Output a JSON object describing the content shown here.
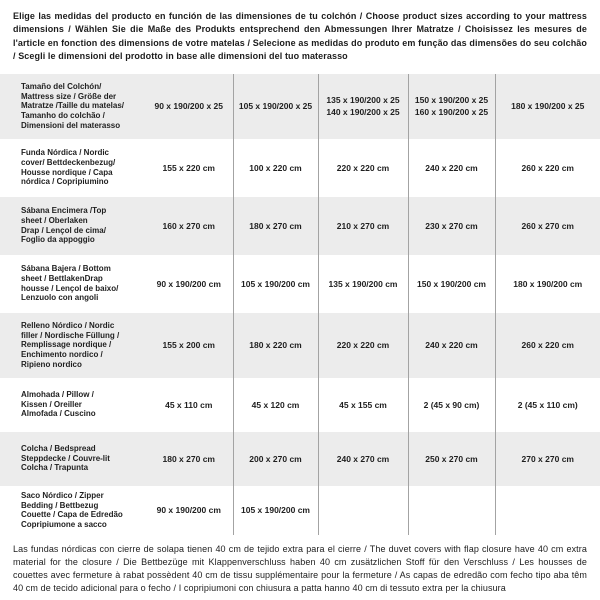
{
  "page": {
    "header_text": "Elige las medidas del producto en función de las dimensiones de tu colchón / Choose product sizes according to your mattress dimensions / Wählen Sie die Maße des Produkts entsprechend den Abmessungen Ihrer Matratze / Choisissez les mesures de l'article en fonction des dimensions de votre matelas / Selecione as medidas do produto em função das dimensões do seu colchão / Scegli le dimensioni del prodotto in base alle dimensioni del tuo materasso",
    "footer_text": "Las fundas nórdicas con cierre de solapa tienen 40 cm de tejido extra para el cierre  /  The duvet covers with flap closure have 40 cm extra material for the closure / Die Bettbezüge mit Klappenverschluss haben 40 cm zusätzlichen Stoff für den Verschluss / Les housses de couettes avec fermeture à rabat possèdent 40 cm de tissu supplémentaire pour la fermeture / As capas de edredão com fecho tipo aba têm 40 cm de tecido adicional para o fecho / I copripiumoni con chiusura a patta hanno 40 cm di tessuto extra per la chiusura"
  },
  "colors": {
    "row_stripe": "#ececec",
    "row_plain": "#ffffff",
    "divider": "#a3a3a3",
    "text": "#1d1d1d"
  },
  "table": {
    "rows": [
      {
        "label": "Tamaño del Colchón/\nMattress size / Größe der\nMatratze /Taille du matelas/\nTamanho do colchão /\nDimensioni del materasso",
        "values": [
          "90 x 190/200 x 25",
          "105 x 190/200 x 25",
          "135 x 190/200 x 25\n140 x 190/200 x 25",
          "150 x 190/200 x 25\n160 x 190/200 x 25",
          "180 x 190/200 x 25"
        ]
      },
      {
        "label": "Funda Nórdica /  Nordic\ncover/ Bettdeckenbezug/\nHousse nordique  / Capa\nnórdica / Copripiumino",
        "values": [
          "155 x 220 cm",
          "100 x 220 cm",
          "220 x 220 cm",
          "240 x 220 cm",
          "260 x 220 cm"
        ]
      },
      {
        "label": "Sábana Encimera /Top\nsheet / Oberlaken\nDrap / Lençol de cima/\nFoglio da appoggio",
        "values": [
          "160 x 270 cm",
          "180 x 270 cm",
          "210 x 270 cm",
          "230 x 270 cm",
          "260 x 270 cm"
        ]
      },
      {
        "label": "Sábana Bajera / Bottom\nsheet / BettlakenDrap\nhousse / Lençol de baixo/\nLenzuolo con angoli",
        "values": [
          "90 x 190/200 cm",
          "105 x 190/200 cm",
          "135 x 190/200 cm",
          "150 x 190/200 cm",
          "180 x 190/200 cm"
        ]
      },
      {
        "label": "Relleno Nórdico / Nordic\nfiller / Nordische Füllung /\nRemplissage nordique /\nEnchimento nordico /\nRipieno nordico",
        "values": [
          "155 x 200 cm",
          "180 x 220 cm",
          "220 x 220 cm",
          "240 x 220 cm",
          "260 x 220 cm"
        ]
      },
      {
        "label": "Almohada  / Pillow /\nKissen / Oreiller\nAlmofada / Cuscino",
        "values": [
          "45 x 110 cm",
          "45 x 120 cm",
          "45 x 155 cm",
          "2 (45 x 90 cm)",
          "2 (45 x 110 cm)"
        ]
      },
      {
        "label": "Colcha / Bedspread\nSteppdecke / Couvre-lit\nColcha / Trapunta",
        "values": [
          "180 x 270 cm",
          "200 x 270 cm",
          "240 x 270 cm",
          "250 x 270 cm",
          "270 x 270 cm"
        ]
      },
      {
        "label": "Saco Nórdico / Zipper\nBedding / Bettbezug\nCouette  / Capa de Edredão\nCopripiumone a sacco",
        "values": [
          "90 x 190/200 cm",
          "105 x 190/200 cm",
          "",
          "",
          ""
        ]
      }
    ]
  }
}
